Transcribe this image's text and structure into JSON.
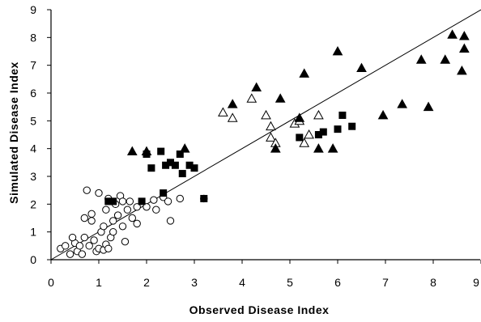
{
  "chart_data": {
    "type": "scatter",
    "title": "",
    "xlabel": "Observed Disease Index",
    "ylabel": "Simulated Disease Index",
    "xlim": [
      0,
      9
    ],
    "ylim": [
      0,
      9
    ],
    "xticks": [
      "0",
      "1",
      "2",
      "3",
      "4",
      "5",
      "6",
      "7",
      "8",
      "9"
    ],
    "yticks": [
      "0",
      "1",
      "2",
      "3",
      "4",
      "5",
      "6",
      "7",
      "8",
      "9"
    ],
    "grid": false,
    "legend": "none",
    "reference_line": {
      "from": [
        0,
        0
      ],
      "to": [
        9,
        9
      ]
    },
    "series": [
      {
        "marker": "open-circle",
        "points": [
          [
            0.2,
            0.4
          ],
          [
            0.3,
            0.5
          ],
          [
            0.4,
            0.2
          ],
          [
            0.5,
            0.6
          ],
          [
            0.45,
            0.8
          ],
          [
            0.55,
            0.3
          ],
          [
            0.6,
            0.5
          ],
          [
            0.65,
            0.2
          ],
          [
            0.7,
            1.5
          ],
          [
            0.75,
            2.5
          ],
          [
            0.7,
            0.8
          ],
          [
            0.8,
            0.5
          ],
          [
            0.85,
            1.4
          ],
          [
            0.85,
            1.65
          ],
          [
            0.9,
            0.7
          ],
          [
            0.95,
            0.3
          ],
          [
            1.0,
            2.4
          ],
          [
            1.0,
            0.4
          ],
          [
            1.05,
            1.0
          ],
          [
            1.1,
            1.2
          ],
          [
            1.1,
            0.35
          ],
          [
            1.15,
            0.55
          ],
          [
            1.15,
            1.8
          ],
          [
            1.2,
            2.2
          ],
          [
            1.2,
            0.4
          ],
          [
            1.25,
            0.8
          ],
          [
            1.3,
            1.0
          ],
          [
            1.3,
            1.4
          ],
          [
            1.35,
            2.0
          ],
          [
            1.4,
            1.6
          ],
          [
            1.45,
            2.3
          ],
          [
            1.5,
            2.1
          ],
          [
            1.5,
            1.2
          ],
          [
            1.55,
            0.65
          ],
          [
            1.6,
            1.8
          ],
          [
            1.65,
            2.1
          ],
          [
            1.7,
            1.5
          ],
          [
            1.8,
            1.3
          ],
          [
            1.8,
            1.9
          ],
          [
            2.0,
            1.9
          ],
          [
            2.15,
            2.15
          ],
          [
            2.2,
            1.8
          ],
          [
            2.35,
            2.25
          ],
          [
            2.45,
            2.1
          ],
          [
            2.5,
            1.4
          ],
          [
            2.7,
            2.2
          ],
          [
            3.2,
            2.2
          ]
        ]
      },
      {
        "marker": "filled-square",
        "points": [
          [
            1.2,
            2.1
          ],
          [
            1.3,
            2.1
          ],
          [
            1.9,
            2.1
          ],
          [
            2.0,
            3.8
          ],
          [
            2.1,
            3.3
          ],
          [
            2.3,
            3.9
          ],
          [
            2.35,
            2.4
          ],
          [
            2.4,
            3.4
          ],
          [
            2.5,
            3.5
          ],
          [
            2.6,
            3.4
          ],
          [
            2.7,
            3.8
          ],
          [
            2.75,
            3.1
          ],
          [
            2.9,
            3.4
          ],
          [
            3.0,
            3.3
          ],
          [
            3.2,
            2.2
          ],
          [
            5.2,
            4.4
          ],
          [
            5.6,
            4.5
          ],
          [
            5.7,
            4.6
          ],
          [
            6.0,
            4.7
          ],
          [
            6.1,
            5.2
          ],
          [
            6.3,
            4.8
          ]
        ]
      },
      {
        "marker": "open-triangle",
        "points": [
          [
            3.6,
            5.3
          ],
          [
            3.8,
            5.1
          ],
          [
            4.2,
            5.8
          ],
          [
            4.5,
            5.2
          ],
          [
            4.6,
            4.8
          ],
          [
            4.6,
            4.4
          ],
          [
            4.7,
            4.2
          ],
          [
            5.1,
            4.9
          ],
          [
            5.2,
            5.0
          ],
          [
            5.3,
            4.2
          ],
          [
            5.4,
            4.5
          ],
          [
            5.6,
            5.2
          ]
        ]
      },
      {
        "marker": "filled-triangle",
        "points": [
          [
            1.7,
            3.9
          ],
          [
            2.0,
            3.9
          ],
          [
            2.8,
            4.0
          ],
          [
            3.8,
            5.6
          ],
          [
            4.3,
            6.2
          ],
          [
            4.7,
            4.0
          ],
          [
            4.8,
            5.8
          ],
          [
            5.2,
            5.1
          ],
          [
            5.3,
            6.7
          ],
          [
            5.6,
            4.0
          ],
          [
            5.9,
            4.0
          ],
          [
            6.0,
            7.5
          ],
          [
            6.5,
            6.9
          ],
          [
            6.95,
            5.2
          ],
          [
            7.35,
            5.6
          ],
          [
            7.75,
            7.2
          ],
          [
            7.9,
            5.5
          ],
          [
            8.25,
            7.2
          ],
          [
            8.4,
            8.1
          ],
          [
            8.6,
            6.8
          ],
          [
            8.65,
            8.05
          ],
          [
            8.65,
            7.6
          ]
        ]
      }
    ]
  }
}
